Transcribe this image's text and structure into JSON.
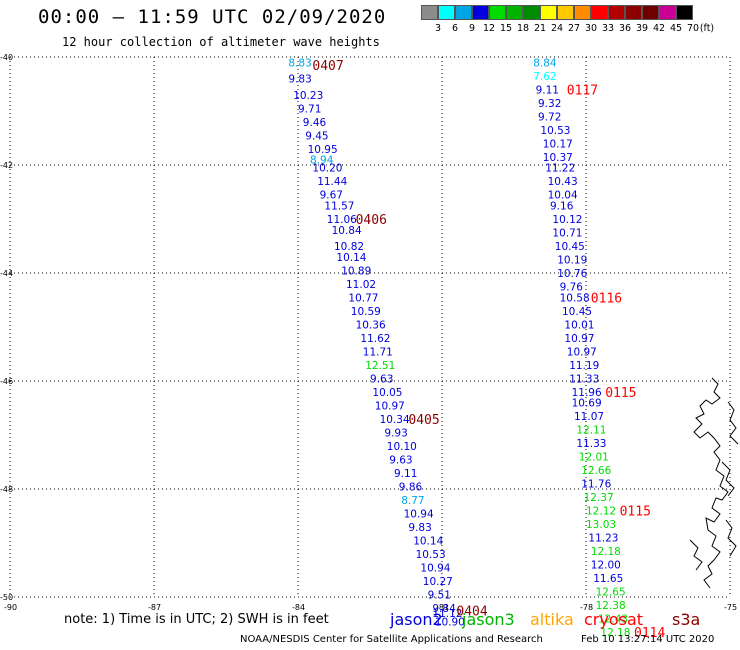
{
  "header": {
    "title": "00:00 — 11:59 UTC 02/09/2020",
    "subtitle": "12 hour collection of altimeter wave heights"
  },
  "colorbar": {
    "unit": "(ft)",
    "ticks": [
      "3",
      "6",
      "9",
      "12",
      "15",
      "18",
      "21",
      "24",
      "27",
      "30",
      "33",
      "36",
      "39",
      "42",
      "45",
      "70"
    ],
    "colors": [
      "#8c8c8c",
      "#00ffff",
      "#00a5e6",
      "#0000dc",
      "#00dc00",
      "#00b400",
      "#008c00",
      "#ffff00",
      "#ffc800",
      "#ff8c00",
      "#ff0000",
      "#b40000",
      "#8c0000",
      "#6e0000",
      "#c80096",
      "#000000"
    ]
  },
  "map": {
    "lat_ticks": [
      "-40",
      "-42",
      "-44",
      "-46",
      "-48",
      "-50"
    ],
    "lon_ticks": [
      "-90",
      "-87",
      "-84",
      "-81",
      "-78",
      "-75"
    ],
    "tracks": [
      {
        "points": [
          {
            "lat": -40.1,
            "lon": -84.2,
            "value": "8.83",
            "color": "#00a5e6"
          },
          {
            "lat": -40.4,
            "lon": -84.2,
            "value": "9.83",
            "color": "#0000dc"
          },
          {
            "lat": -40.7,
            "lon": -84.1,
            "value": "10.23",
            "color": "#0000dc"
          },
          {
            "lat": -40.95,
            "lon": -84.0,
            "value": "9.71",
            "color": "#0000dc"
          },
          {
            "lat": -41.2,
            "lon": -83.9,
            "value": "9.46",
            "color": "#0000dc"
          },
          {
            "lat": -41.45,
            "lon": -83.85,
            "value": "9.45",
            "color": "#0000dc"
          },
          {
            "lat": -41.7,
            "lon": -83.8,
            "value": "10.95",
            "color": "#0000dc"
          },
          {
            "lat": -41.9,
            "lon": -83.75,
            "value": "8.94",
            "color": "#00a5e6"
          },
          {
            "lat": -42.05,
            "lon": -83.7,
            "value": "10.20",
            "color": "#0000dc"
          },
          {
            "lat": -42.3,
            "lon": -83.6,
            "value": "11.44",
            "color": "#0000dc"
          },
          {
            "lat": -42.55,
            "lon": -83.55,
            "value": "9.67",
            "color": "#0000dc"
          },
          {
            "lat": -42.75,
            "lon": -83.45,
            "value": "11.57",
            "color": "#0000dc"
          },
          {
            "lat": -43.0,
            "lon": -83.4,
            "value": "11.06",
            "color": "#0000dc"
          },
          {
            "lat": -43.2,
            "lon": -83.3,
            "value": "10.84",
            "color": "#0000dc"
          },
          {
            "lat": -43.5,
            "lon": -83.25,
            "value": "10.82",
            "color": "#0000dc"
          },
          {
            "lat": -43.7,
            "lon": -83.2,
            "value": "10.14",
            "color": "#0000dc"
          },
          {
            "lat": -43.95,
            "lon": -83.1,
            "value": "10.89",
            "color": "#0000dc"
          },
          {
            "lat": -44.2,
            "lon": -83.0,
            "value": "11.02",
            "color": "#0000dc"
          },
          {
            "lat": -44.45,
            "lon": -82.95,
            "value": "10.77",
            "color": "#0000dc"
          },
          {
            "lat": -44.7,
            "lon": -82.9,
            "value": "10.59",
            "color": "#0000dc"
          },
          {
            "lat": -44.95,
            "lon": -82.8,
            "value": "10.36",
            "color": "#0000dc"
          },
          {
            "lat": -45.2,
            "lon": -82.7,
            "value": "11.62",
            "color": "#0000dc"
          },
          {
            "lat": -45.45,
            "lon": -82.65,
            "value": "11.71",
            "color": "#0000dc"
          },
          {
            "lat": -45.7,
            "lon": -82.6,
            "value": "12.51",
            "color": "#00dc00"
          },
          {
            "lat": -45.95,
            "lon": -82.5,
            "value": "9.63",
            "color": "#0000dc"
          },
          {
            "lat": -46.2,
            "lon": -82.45,
            "value": "10.05",
            "color": "#0000dc"
          },
          {
            "lat": -46.45,
            "lon": -82.4,
            "value": "10.97",
            "color": "#0000dc"
          },
          {
            "lat": -46.7,
            "lon": -82.3,
            "value": "10.34",
            "color": "#0000dc"
          },
          {
            "lat": -46.95,
            "lon": -82.2,
            "value": "9.93",
            "color": "#0000dc"
          },
          {
            "lat": -47.2,
            "lon": -82.15,
            "value": "10.10",
            "color": "#0000dc"
          },
          {
            "lat": -47.45,
            "lon": -82.1,
            "value": "9.63",
            "color": "#0000dc"
          },
          {
            "lat": -47.7,
            "lon": -82.0,
            "value": "9.11",
            "color": "#0000dc"
          },
          {
            "lat": -47.95,
            "lon": -81.9,
            "value": "9.86",
            "color": "#0000dc"
          },
          {
            "lat": -48.2,
            "lon": -81.85,
            "value": "8.77",
            "color": "#00a5e6"
          },
          {
            "lat": -48.45,
            "lon": -81.8,
            "value": "10.94",
            "color": "#0000dc"
          },
          {
            "lat": -48.7,
            "lon": -81.7,
            "value": "9.83",
            "color": "#0000dc"
          },
          {
            "lat": -48.95,
            "lon": -81.6,
            "value": "10.14",
            "color": "#0000dc"
          },
          {
            "lat": -49.2,
            "lon": -81.55,
            "value": "10.53",
            "color": "#0000dc"
          },
          {
            "lat": -49.45,
            "lon": -81.45,
            "value": "10.94",
            "color": "#0000dc"
          },
          {
            "lat": -49.7,
            "lon": -81.4,
            "value": "10.27",
            "color": "#0000dc"
          },
          {
            "lat": -49.95,
            "lon": -81.3,
            "value": "9.51",
            "color": "#0000dc"
          },
          {
            "lat": -50.2,
            "lon": -81.2,
            "value": "9.84",
            "color": "#0000dc"
          },
          {
            "lat": -50.3,
            "lon": -81.2,
            "value": "11.12",
            "color": "#0000dc"
          },
          {
            "lat": -50.45,
            "lon": -81.15,
            "value": "10.90",
            "color": "#0000dc"
          }
        ]
      },
      {
        "points": [
          {
            "lat": -40.1,
            "lon": -79.1,
            "value": "8.84",
            "color": "#00a5e6"
          },
          {
            "lat": -40.35,
            "lon": -79.1,
            "value": "7.62",
            "color": "#00ffff"
          },
          {
            "lat": -40.6,
            "lon": -79.05,
            "value": "9.11",
            "color": "#0000dc"
          },
          {
            "lat": -40.85,
            "lon": -79.0,
            "value": "9.32",
            "color": "#0000dc"
          },
          {
            "lat": -41.1,
            "lon": -79.0,
            "value": "9.72",
            "color": "#0000dc"
          },
          {
            "lat": -41.35,
            "lon": -78.95,
            "value": "10.53",
            "color": "#0000dc"
          },
          {
            "lat": -41.6,
            "lon": -78.9,
            "value": "10.17",
            "color": "#0000dc"
          },
          {
            "lat": -41.85,
            "lon": -78.9,
            "value": "10.37",
            "color": "#0000dc"
          },
          {
            "lat": -42.05,
            "lon": -78.85,
            "value": "11.22",
            "color": "#0000dc"
          },
          {
            "lat": -42.3,
            "lon": -78.8,
            "value": "10.43",
            "color": "#0000dc"
          },
          {
            "lat": -42.55,
            "lon": -78.8,
            "value": "10.04",
            "color": "#0000dc"
          },
          {
            "lat": -42.75,
            "lon": -78.75,
            "value": "9.16",
            "color": "#0000dc"
          },
          {
            "lat": -43.0,
            "lon": -78.7,
            "value": "10.12",
            "color": "#0000dc"
          },
          {
            "lat": -43.25,
            "lon": -78.7,
            "value": "10.71",
            "color": "#0000dc"
          },
          {
            "lat": -43.5,
            "lon": -78.65,
            "value": "10.45",
            "color": "#0000dc"
          },
          {
            "lat": -43.75,
            "lon": -78.6,
            "value": "10.19",
            "color": "#0000dc"
          },
          {
            "lat": -44.0,
            "lon": -78.6,
            "value": "10.76",
            "color": "#0000dc"
          },
          {
            "lat": -44.25,
            "lon": -78.55,
            "value": "9.76",
            "color": "#0000dc"
          },
          {
            "lat": -44.45,
            "lon": -78.55,
            "value": "10.58",
            "color": "#0000dc"
          },
          {
            "lat": -44.7,
            "lon": -78.5,
            "value": "10.45",
            "color": "#0000dc"
          },
          {
            "lat": -44.95,
            "lon": -78.45,
            "value": "10.01",
            "color": "#0000dc"
          },
          {
            "lat": -45.2,
            "lon": -78.45,
            "value": "10.97",
            "color": "#0000dc"
          },
          {
            "lat": -45.45,
            "lon": -78.4,
            "value": "10.97",
            "color": "#0000dc"
          },
          {
            "lat": -45.7,
            "lon": -78.35,
            "value": "11.19",
            "color": "#0000dc"
          },
          {
            "lat": -45.95,
            "lon": -78.35,
            "value": "11.33",
            "color": "#0000dc"
          },
          {
            "lat": -46.2,
            "lon": -78.3,
            "value": "11.96",
            "color": "#0000dc"
          },
          {
            "lat": -46.4,
            "lon": -78.3,
            "value": "10.69",
            "color": "#0000dc"
          },
          {
            "lat": -46.65,
            "lon": -78.25,
            "value": "11.07",
            "color": "#0000dc"
          },
          {
            "lat": -46.9,
            "lon": -78.2,
            "value": "12.11",
            "color": "#00dc00"
          },
          {
            "lat": -47.15,
            "lon": -78.2,
            "value": "11.33",
            "color": "#0000dc"
          },
          {
            "lat": -47.4,
            "lon": -78.15,
            "value": "12.01",
            "color": "#00dc00"
          },
          {
            "lat": -47.65,
            "lon": -78.1,
            "value": "12.66",
            "color": "#00dc00"
          },
          {
            "lat": -47.9,
            "lon": -78.1,
            "value": "11.76",
            "color": "#0000dc"
          },
          {
            "lat": -48.15,
            "lon": -78.05,
            "value": "12.37",
            "color": "#00dc00"
          },
          {
            "lat": -48.4,
            "lon": -78.0,
            "value": "12.12",
            "color": "#00dc00"
          },
          {
            "lat": -48.65,
            "lon": -78.0,
            "value": "13.03",
            "color": "#00dc00"
          },
          {
            "lat": -48.9,
            "lon": -77.95,
            "value": "11.23",
            "color": "#0000dc"
          },
          {
            "lat": -49.15,
            "lon": -77.9,
            "value": "12.18",
            "color": "#00dc00"
          },
          {
            "lat": -49.4,
            "lon": -77.9,
            "value": "12.00",
            "color": "#0000dc"
          },
          {
            "lat": -49.65,
            "lon": -77.85,
            "value": "11.65",
            "color": "#0000dc"
          },
          {
            "lat": -49.9,
            "lon": -77.8,
            "value": "12.65",
            "color": "#00dc00"
          },
          {
            "lat": -50.15,
            "lon": -77.8,
            "value": "12.38",
            "color": "#00dc00"
          },
          {
            "lat": -50.4,
            "lon": -77.75,
            "value": "12.43",
            "color": "#00dc00"
          },
          {
            "lat": -50.65,
            "lon": -77.7,
            "value": "12.18",
            "color": "#00dc00"
          }
        ]
      }
    ],
    "pass_labels": [
      {
        "text": "0407",
        "lat": -40.15,
        "lon": -83.7,
        "color": "#8c0000"
      },
      {
        "text": "0406",
        "lat": -43.0,
        "lon": -82.8,
        "color": "#8c0000"
      },
      {
        "text": "0405",
        "lat": -46.7,
        "lon": -81.7,
        "color": "#8c0000"
      },
      {
        "text": "0404",
        "lat": -50.25,
        "lon": -80.7,
        "color": "#8c0000"
      },
      {
        "text": "0117",
        "lat": -40.6,
        "lon": -78.4,
        "color": "#ff0000"
      },
      {
        "text": "0116",
        "lat": -44.45,
        "lon": -77.9,
        "color": "#ff0000"
      },
      {
        "text": "0115",
        "lat": -46.2,
        "lon": -77.6,
        "color": "#ff0000"
      },
      {
        "text": "0115",
        "lat": -48.4,
        "lon": -77.3,
        "color": "#ff0000"
      },
      {
        "text": "0114",
        "lat": -50.65,
        "lon": -77.0,
        "color": "#ff0000"
      }
    ]
  },
  "note": "note: 1) Time is in UTC; 2) SWH is in feet",
  "missions": [
    {
      "label": "jason2",
      "color": "#0000dc"
    },
    {
      "label": "jason3",
      "color": "#00b400"
    },
    {
      "label": "altika",
      "color": "#ffa500"
    },
    {
      "label": "cryosat",
      "color": "#ff0000"
    },
    {
      "label": "s3a",
      "color": "#8c0000"
    }
  ],
  "footer": {
    "credit": "NOAA/NESDIS Center for Satellite Applications and Research",
    "timestamp": "Feb 10 13:27:14 UTC 2020"
  }
}
